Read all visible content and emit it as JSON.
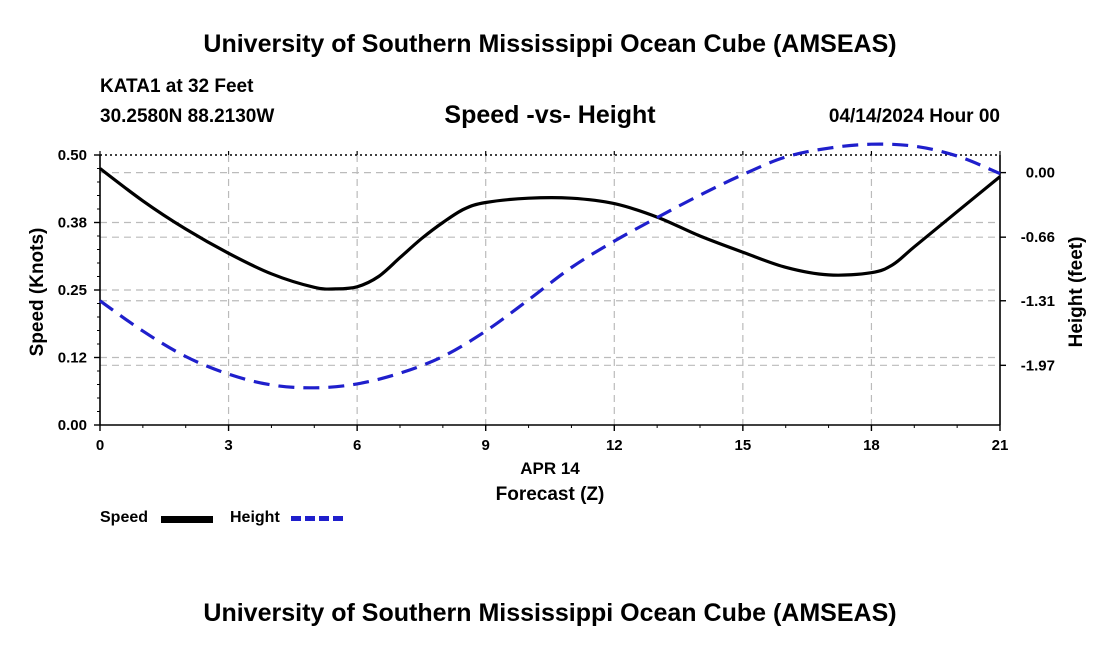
{
  "header": {
    "title": "University of Southern Mississippi Ocean Cube (AMSEAS)",
    "station": "KATA1 at 32 Feet",
    "coords": "30.2580N  88.2130W",
    "datetime": "04/14/2024 Hour 00"
  },
  "footer": {
    "title": "University of Southern Mississippi Ocean Cube (AMSEAS)"
  },
  "legend": {
    "speed_label": "Speed",
    "height_label": "Height"
  },
  "colors": {
    "speed": "#000000",
    "height": "#1f1fcc",
    "grid": "#bbbbbb"
  },
  "chart_data": {
    "type": "line",
    "title": "Speed -vs- Height",
    "xlabel": "Forecast (Z)",
    "xsublabel": "APR 14",
    "ylabel": "Speed (Knots)",
    "y2label": "Height (feet)",
    "xlim": [
      0,
      21
    ],
    "xticks": [
      0,
      3,
      6,
      9,
      12,
      15,
      18,
      21
    ],
    "xtick_labels": [
      "0",
      "3",
      "6",
      "9",
      "12",
      "15",
      "18",
      "21"
    ],
    "ylim": [
      0,
      0.5
    ],
    "yticks": [
      0,
      0.125,
      0.25,
      0.375,
      0.5
    ],
    "ytick_labels": [
      "0.00",
      "0.12",
      "0.25",
      "0.38",
      "0.50"
    ],
    "y2lim": [
      -2.58,
      0.18
    ],
    "y2ticks": [
      0.0,
      -0.66,
      -1.31,
      -1.97
    ],
    "y2tick_labels": [
      "0.00",
      "-0.66",
      "-1.31",
      "-1.97"
    ],
    "grid": true,
    "series": [
      {
        "name": "Speed",
        "axis": "left",
        "style": "solid",
        "x": [
          0,
          1,
          2,
          3,
          4,
          5,
          5.5,
          6,
          6.5,
          7,
          7.5,
          8,
          8.5,
          9,
          10,
          11,
          12,
          13,
          14,
          15,
          16,
          17,
          18,
          18.5,
          19,
          20,
          21
        ],
        "values": [
          0.475,
          0.415,
          0.363,
          0.318,
          0.28,
          0.255,
          0.252,
          0.256,
          0.275,
          0.31,
          0.345,
          0.375,
          0.4,
          0.412,
          0.42,
          0.42,
          0.41,
          0.385,
          0.35,
          0.32,
          0.292,
          0.278,
          0.282,
          0.297,
          0.33,
          0.395,
          0.46
        ]
      },
      {
        "name": "Height",
        "axis": "right",
        "style": "dashed",
        "x": [
          0,
          1,
          2,
          3,
          4,
          5,
          6,
          7,
          8,
          9,
          10,
          11,
          12,
          13,
          14,
          15,
          16,
          17,
          18,
          19,
          20,
          21
        ],
        "values": [
          -1.31,
          -1.62,
          -1.88,
          -2.06,
          -2.17,
          -2.2,
          -2.16,
          -2.05,
          -1.88,
          -1.62,
          -1.3,
          -0.97,
          -0.7,
          -0.46,
          -0.23,
          -0.02,
          0.16,
          0.25,
          0.29,
          0.27,
          0.17,
          -0.01
        ]
      }
    ]
  }
}
